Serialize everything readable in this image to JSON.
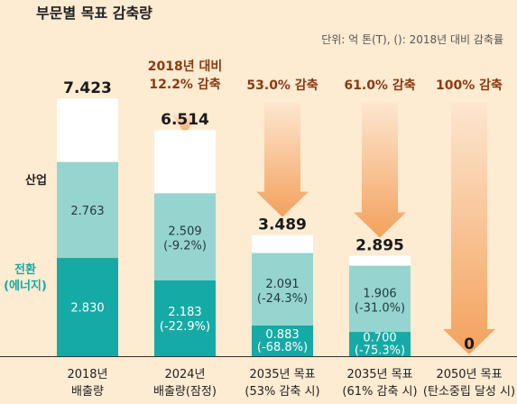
{
  "chart_data": {
    "type": "bar",
    "title": "부문별 목표 감축량",
    "unit_note": "단위: 억 톤(T), (): 2018년 대비 감축률",
    "categories": [
      "2018년\n배출량",
      "2024년\n배출량(잠정)",
      "2035년 목표\n(53% 감축 시)",
      "2035년 목표\n(61% 감축 시)",
      "2050년 목표\n(탄소중립 달성 시)"
    ],
    "totals": [
      "7.423",
      "6.514",
      "3.489",
      "2.895",
      "0"
    ],
    "reductions": [
      "",
      "2018년 대비\n12.2% 감축",
      "53.0% 감축",
      "61.0% 감축",
      "100% 감축"
    ],
    "series": [
      {
        "name": "산업",
        "values": [
          2.763,
          2.509,
          2.091,
          1.906,
          0
        ],
        "labels": [
          "2.763",
          "2.509\n(-9.2%)",
          "2.091\n(-24.3%)",
          "1.906\n(-31.0%)",
          ""
        ]
      },
      {
        "name": "전환\n(에너지)",
        "values": [
          2.83,
          2.183,
          0.883,
          0.7,
          0
        ],
        "labels": [
          "2.830",
          "2.183\n(-22.9%)",
          "0.883\n(-68.8%)",
          "0.700\n(-75.3%)",
          ""
        ]
      }
    ],
    "colors": {
      "industry": "#96d4d0",
      "energy": "#16aaa6",
      "other": "#ffffff",
      "arrow": "#f4a86a",
      "reduction_text": "#8b3a10",
      "background": "#fdebd2",
      "energy_label": "#16aaa6"
    }
  }
}
